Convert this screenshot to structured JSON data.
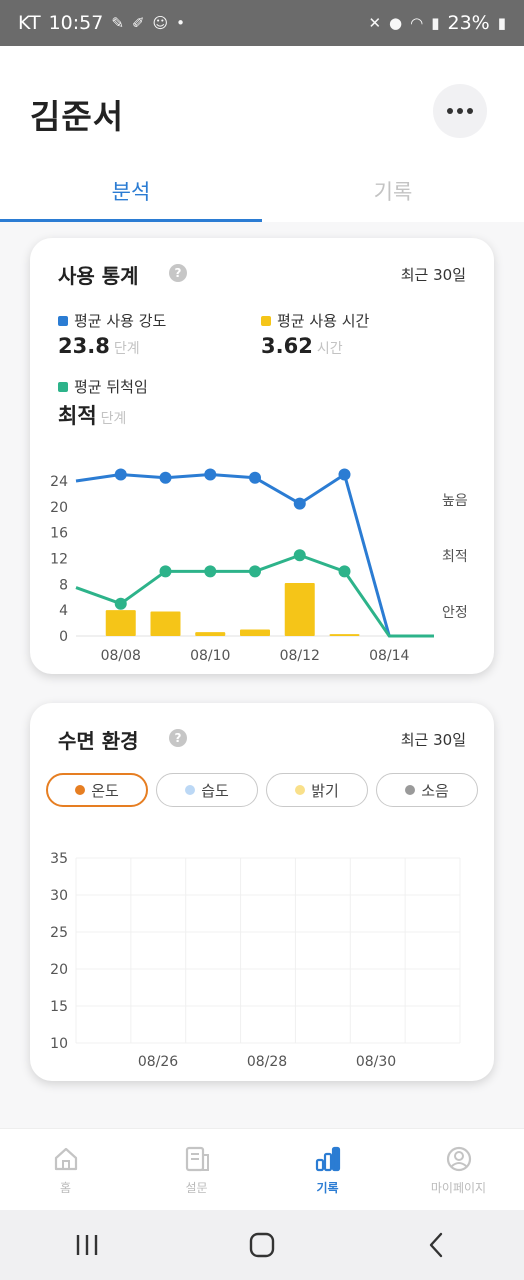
{
  "status": {
    "carrier": "KT",
    "time": "10:57",
    "battery": "23%"
  },
  "header": {
    "title": "김준서",
    "more_icon": "more-horizontal-icon"
  },
  "tabs": [
    {
      "label": "분석",
      "active": true
    },
    {
      "label": "기록",
      "active": false
    }
  ],
  "usage_card": {
    "title": "사용 통계",
    "period": "최근 30일",
    "stats": [
      {
        "label": "평균 사용 강도",
        "value": "23.8",
        "unit": "단계",
        "color": "#2b7cd3"
      },
      {
        "label": "평균 사용 시간",
        "value": "3.62",
        "unit": "시간",
        "color": "#f5c518"
      },
      {
        "label": "평균 뒤척임",
        "value": "최적",
        "unit": "단계",
        "color": "#2db38a"
      }
    ]
  },
  "env_card": {
    "title": "수면 환경",
    "period": "최근 30일",
    "filters": [
      {
        "label": "온도",
        "color": "#e67e22",
        "active": true
      },
      {
        "label": "습도",
        "color": "#bcd8f5",
        "active": false
      },
      {
        "label": "밝기",
        "color": "#f9e08a",
        "active": false
      },
      {
        "label": "소음",
        "color": "#9a9a9a",
        "active": false
      }
    ]
  },
  "chart_data": [
    {
      "type": "line",
      "x": [
        "08/07",
        "08/08",
        "08/09",
        "08/10",
        "08/11",
        "08/12",
        "08/13",
        "08/14",
        "08/15"
      ],
      "x_tick_labels": [
        "08/08",
        "08/10",
        "08/12",
        "08/14"
      ],
      "ylim": [
        0,
        24
      ],
      "y_ticks": [
        0,
        4,
        8,
        12,
        16,
        20,
        24
      ],
      "right_labels": [
        "높음",
        "최적",
        "안정"
      ],
      "series": [
        {
          "type": "line",
          "color": "#2b7cd3",
          "values": [
            24,
            25,
            24.5,
            25,
            24.5,
            20.5,
            25,
            0,
            0
          ],
          "markers": [
            false,
            true,
            true,
            true,
            true,
            true,
            true,
            false,
            false
          ]
        },
        {
          "type": "line",
          "color": "#2db38a",
          "values": [
            7.5,
            5,
            10,
            10,
            10,
            12.5,
            10,
            0,
            0
          ],
          "markers": [
            false,
            true,
            true,
            true,
            true,
            true,
            true,
            false,
            false
          ]
        },
        {
          "type": "bar",
          "color": "#f5c518",
          "values": [
            null,
            4,
            3.8,
            0.6,
            1,
            8.2,
            0.3,
            null,
            null
          ]
        }
      ]
    },
    {
      "type": "line",
      "x_tick_labels": [
        "08/26",
        "08/28",
        "08/30"
      ],
      "ylim": [
        10,
        35
      ],
      "y_ticks": [
        10,
        15,
        20,
        25,
        30,
        35
      ],
      "series": []
    }
  ],
  "bottom_nav": [
    {
      "label": "홈",
      "icon": "home-icon",
      "active": false
    },
    {
      "label": "설문",
      "icon": "survey-icon",
      "active": false
    },
    {
      "label": "기록",
      "icon": "bar-chart-icon",
      "active": true
    },
    {
      "label": "마이페이지",
      "icon": "user-icon",
      "active": false
    }
  ]
}
